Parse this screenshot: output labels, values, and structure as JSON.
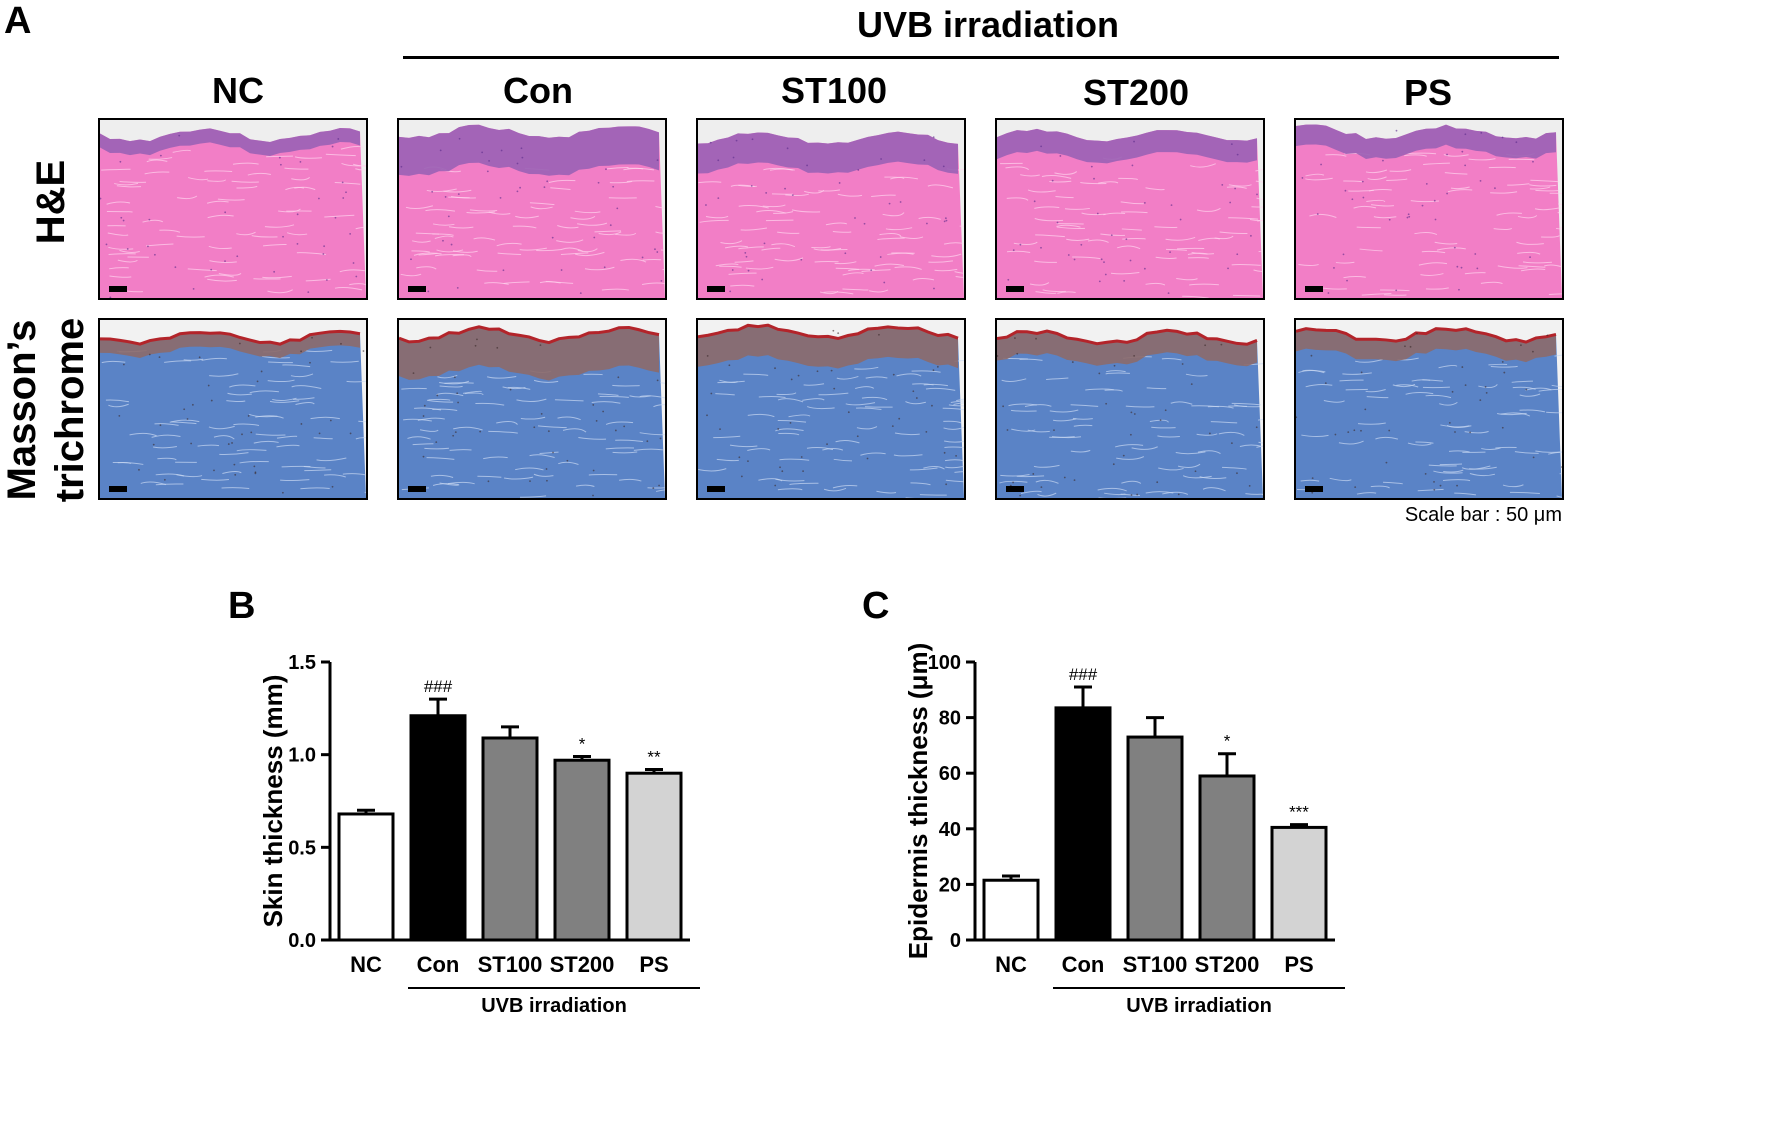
{
  "panel_a": {
    "letter": "A",
    "uvb_label": "UVB irradiation",
    "columns": [
      "NC",
      "Con",
      "ST100",
      "ST200",
      "PS"
    ],
    "rows": [
      {
        "label": "H&E",
        "stain": "he"
      },
      {
        "label_line1": "Masson’s",
        "label_line2": "trichrome",
        "stain": "mt"
      }
    ],
    "scale_note": "Scale bar : 50 μm",
    "colors": {
      "he_tissue": "#f27ec6",
      "he_epidermis": "#9a62b5",
      "he_background": "#eeeeee",
      "mt_tissue": "#5a83c6",
      "mt_epidermis": "#8c6a6a",
      "mt_stratum": "#b3242a",
      "mt_background": "#f2f2f2"
    }
  },
  "chart_data": [
    {
      "panel": "B",
      "type": "bar",
      "categories": [
        "NC",
        "Con",
        "ST100",
        "ST200",
        "PS"
      ],
      "values": [
        0.68,
        1.21,
        1.09,
        0.97,
        0.9
      ],
      "errors": [
        0.02,
        0.09,
        0.06,
        0.02,
        0.02
      ],
      "annotations": [
        "",
        "###",
        "",
        "*",
        "**"
      ],
      "bar_colors": [
        "#ffffff",
        "#000000",
        "#808080",
        "#808080",
        "#d3d3d3"
      ],
      "ylabel": "Skin thickness (mm)",
      "ylim": [
        0,
        1.5
      ],
      "yticks": [
        "0.0",
        "0.5",
        "1.0",
        "1.5"
      ],
      "group_label": "UVB irradiation"
    },
    {
      "panel": "C",
      "type": "bar",
      "categories": [
        "NC",
        "Con",
        "ST100",
        "ST200",
        "PS"
      ],
      "values": [
        21.5,
        83.5,
        73,
        59,
        40.5
      ],
      "errors": [
        1.5,
        7.5,
        7,
        8,
        1
      ],
      "annotations": [
        "",
        "###",
        "",
        "*",
        "***"
      ],
      "bar_colors": [
        "#ffffff",
        "#000000",
        "#808080",
        "#808080",
        "#d3d3d3"
      ],
      "ylabel": "Epidermis thickness (μm)",
      "ylim": [
        0,
        100
      ],
      "yticks": [
        "0",
        "20",
        "40",
        "60",
        "80",
        "100"
      ],
      "group_label": "UVB irradiation"
    }
  ]
}
